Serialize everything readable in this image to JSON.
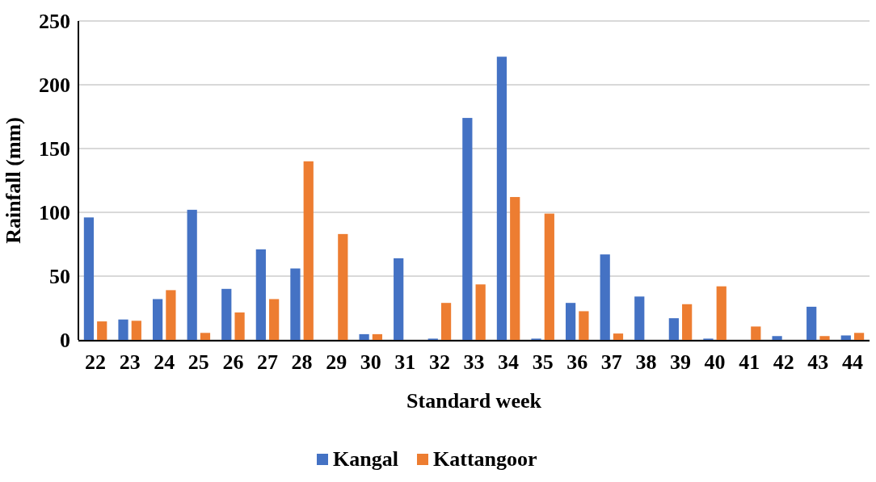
{
  "chart_data": {
    "type": "bar",
    "xlabel": "Standard week",
    "ylabel": "Rainfall (mm)",
    "categories": [
      "22",
      "23",
      "24",
      "25",
      "26",
      "27",
      "28",
      "29",
      "30",
      "31",
      "32",
      "33",
      "34",
      "35",
      "36",
      "37",
      "38",
      "39",
      "40",
      "41",
      "42",
      "43",
      "44"
    ],
    "series": [
      {
        "name": "Kangal",
        "color": "#4472c4",
        "values": [
          96,
          16,
          32,
          102,
          40,
          71,
          56,
          0,
          4.5,
          64,
          1,
          174,
          222,
          1,
          29,
          67,
          34,
          17,
          1,
          0,
          3,
          26,
          3.5
        ]
      },
      {
        "name": "Kattangoor",
        "color": "#ed7d31",
        "values": [
          14.5,
          15,
          39,
          5.5,
          21.5,
          32,
          140,
          83,
          4.5,
          0,
          29,
          43.5,
          112,
          99,
          22.5,
          5,
          0,
          28,
          42,
          10.5,
          0,
          3,
          5.5
        ]
      }
    ],
    "ylim": [
      0,
      250
    ],
    "yticks": [
      0,
      50,
      100,
      150,
      200,
      250
    ],
    "grid": "y",
    "legend": "bottom"
  }
}
